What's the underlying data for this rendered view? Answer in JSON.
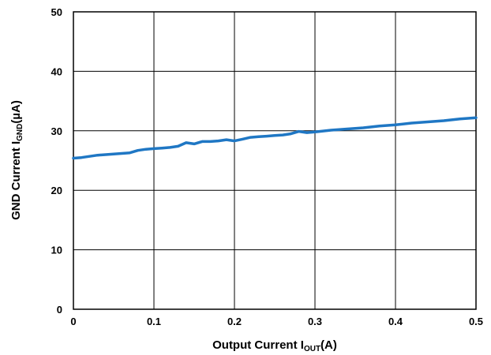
{
  "chart_data": {
    "type": "line",
    "xlabel": {
      "main": "Output Current I",
      "sub": "OUT",
      "suffix": "(A)"
    },
    "ylabel": {
      "main": "GND Current I",
      "sub": "GND",
      "suffix": "(µA)"
    },
    "xlim": [
      0,
      0.5
    ],
    "ylim": [
      0,
      50
    ],
    "x_ticks": [
      0,
      0.1,
      0.2,
      0.3,
      0.4,
      0.5
    ],
    "x_tick_labels": [
      "0",
      "0.1",
      "0.2",
      "0.3",
      "0.4",
      "0.5"
    ],
    "y_ticks": [
      0,
      10,
      20,
      30,
      40,
      50
    ],
    "y_tick_labels": [
      "0",
      "10",
      "20",
      "30",
      "40",
      "50"
    ],
    "grid": true,
    "series": [
      {
        "color": "#1f77c4",
        "points": [
          [
            0.0,
            25.4
          ],
          [
            0.01,
            25.5
          ],
          [
            0.02,
            25.7
          ],
          [
            0.03,
            25.9
          ],
          [
            0.04,
            26.0
          ],
          [
            0.05,
            26.1
          ],
          [
            0.06,
            26.2
          ],
          [
            0.07,
            26.3
          ],
          [
            0.08,
            26.7
          ],
          [
            0.09,
            26.9
          ],
          [
            0.1,
            27.0
          ],
          [
            0.11,
            27.1
          ],
          [
            0.12,
            27.2
          ],
          [
            0.13,
            27.4
          ],
          [
            0.14,
            28.0
          ],
          [
            0.15,
            27.8
          ],
          [
            0.16,
            28.2
          ],
          [
            0.17,
            28.2
          ],
          [
            0.18,
            28.3
          ],
          [
            0.19,
            28.5
          ],
          [
            0.2,
            28.3
          ],
          [
            0.21,
            28.6
          ],
          [
            0.22,
            28.9
          ],
          [
            0.23,
            29.0
          ],
          [
            0.24,
            29.1
          ],
          [
            0.25,
            29.2
          ],
          [
            0.26,
            29.3
          ],
          [
            0.27,
            29.5
          ],
          [
            0.28,
            29.9
          ],
          [
            0.29,
            29.7
          ],
          [
            0.3,
            29.8
          ],
          [
            0.32,
            30.1
          ],
          [
            0.34,
            30.3
          ],
          [
            0.36,
            30.5
          ],
          [
            0.38,
            30.8
          ],
          [
            0.4,
            31.0
          ],
          [
            0.42,
            31.3
          ],
          [
            0.44,
            31.5
          ],
          [
            0.46,
            31.7
          ],
          [
            0.48,
            32.0
          ],
          [
            0.5,
            32.2
          ]
        ]
      }
    ]
  }
}
